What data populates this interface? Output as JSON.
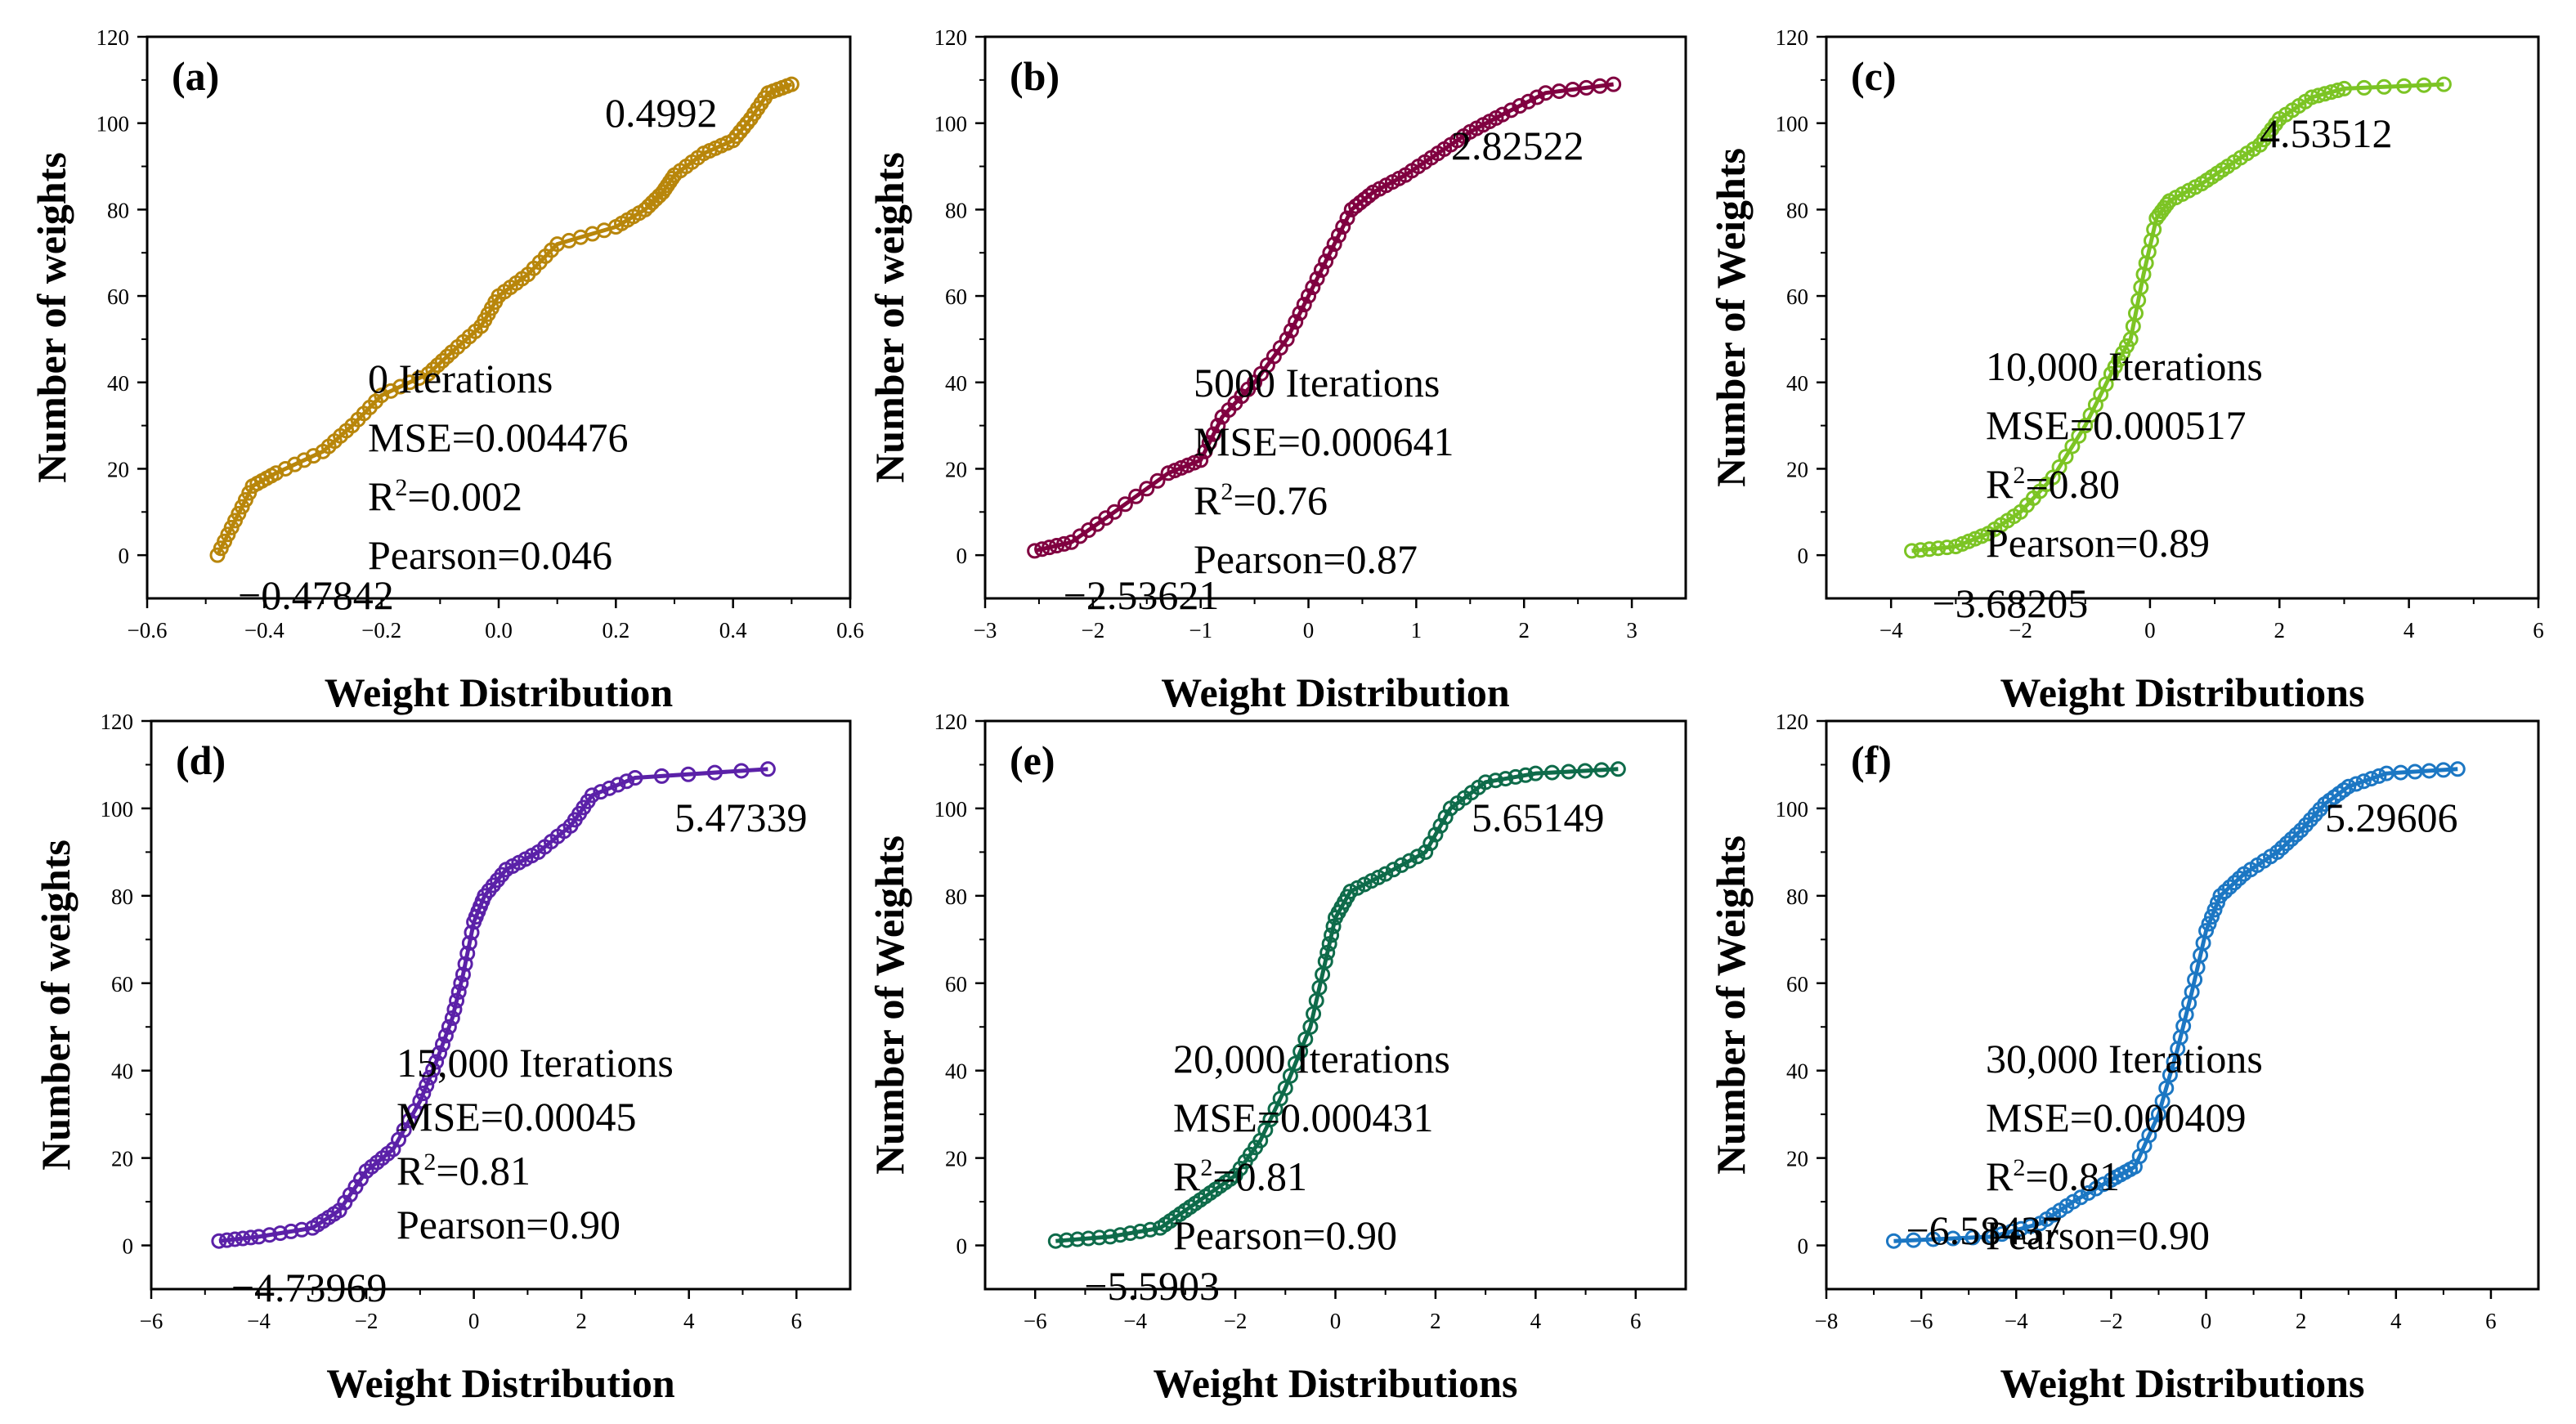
{
  "chart_data": [
    {
      "type": "line",
      "panel_label": "(a)",
      "xlabel": "Weight Distribution",
      "ylabel": "Number of weights",
      "xlim": [
        -0.6,
        0.6
      ],
      "ylim": [
        -10,
        120
      ],
      "xticks": [
        -0.6,
        -0.4,
        -0.2,
        0.0,
        0.2,
        0.4,
        0.6
      ],
      "xtick_labels": [
        "−0.6",
        "−0.4",
        "−0.2",
        "0.0",
        "0.2",
        "0.4",
        "0.6"
      ],
      "yticks": [
        0,
        20,
        40,
        60,
        80,
        100,
        120
      ],
      "ytick_labels": [
        "0",
        "20",
        "40",
        "60",
        "80",
        "100",
        "120"
      ],
      "color": "#B8860B",
      "markers": "open-circle",
      "series": [
        {
          "name": "weights",
          "x": [
            -0.48,
            -0.45,
            -0.42,
            -0.38,
            -0.3,
            -0.25,
            -0.2,
            -0.12,
            -0.08,
            -0.03,
            0.0,
            0.05,
            0.1,
            0.2,
            0.25,
            0.28,
            0.3,
            0.35,
            0.4,
            0.43,
            0.46,
            0.5
          ],
          "y": [
            0,
            8,
            16,
            19,
            24,
            30,
            37,
            42,
            47,
            53,
            60,
            65,
            72,
            76,
            80,
            84,
            88,
            93,
            96,
            101,
            107,
            109
          ]
        }
      ],
      "min_label": "−0.47842",
      "max_label": "0.4992",
      "stats": {
        "iterations": "0 Iterations",
        "mse": "MSE=0.004476",
        "r2_value": "=0.002",
        "pearson": "Pearson=0.046"
      }
    },
    {
      "type": "line",
      "panel_label": "(b)",
      "xlabel": "Weight Distribution",
      "ylabel": "Number of weights",
      "xlim": [
        -3,
        3.5
      ],
      "ylim": [
        -10,
        120
      ],
      "xticks": [
        -3,
        -2,
        -1,
        0,
        1,
        2,
        3
      ],
      "xtick_labels": [
        "−3",
        "−2",
        "−1",
        "0",
        "1",
        "2",
        "3"
      ],
      "yticks": [
        0,
        20,
        40,
        60,
        80,
        100,
        120
      ],
      "ytick_labels": [
        "0",
        "20",
        "40",
        "60",
        "80",
        "100",
        "120"
      ],
      "color": "#800040",
      "markers": "open-circle",
      "series": [
        {
          "name": "weights",
          "x": [
            -2.54,
            -2.2,
            -1.8,
            -1.3,
            -1.0,
            -0.8,
            -0.5,
            -0.2,
            0.0,
            0.2,
            0.4,
            0.6,
            0.9,
            1.2,
            1.5,
            1.8,
            2.2,
            2.83
          ],
          "y": [
            1,
            3,
            10,
            19,
            22,
            32,
            40,
            50,
            60,
            70,
            80,
            84,
            88,
            93,
            98,
            102,
            107,
            109
          ]
        }
      ],
      "min_label": "−2.53621",
      "max_label": "2.82522",
      "stats": {
        "iterations": "5000 Iterations",
        "mse": "MSE=0.000641",
        "r2_value": "=0.76",
        "pearson": "Pearson=0.87"
      }
    },
    {
      "type": "line",
      "panel_label": "(c)",
      "xlabel": "Weight Distributions",
      "ylabel": "Number of Weights",
      "xlim": [
        -5,
        6
      ],
      "ylim": [
        -10,
        120
      ],
      "xticks": [
        -4,
        -2,
        0,
        2,
        4,
        6
      ],
      "xtick_labels": [
        "−4",
        "−2",
        "0",
        "2",
        "4",
        "6"
      ],
      "yticks": [
        0,
        20,
        40,
        60,
        80,
        100,
        120
      ],
      "ytick_labels": [
        "0",
        "20",
        "40",
        "60",
        "80",
        "100",
        "120"
      ],
      "color": "#7CC424",
      "markers": "open-circle",
      "series": [
        {
          "name": "weights",
          "x": [
            -3.68,
            -3.0,
            -2.5,
            -2.0,
            -1.5,
            -1.0,
            -0.6,
            -0.3,
            -0.1,
            0.1,
            0.3,
            0.8,
            1.2,
            1.7,
            2.0,
            2.5,
            3.0,
            4.54
          ],
          "y": [
            1,
            2,
            5,
            10,
            18,
            30,
            42,
            50,
            65,
            78,
            82,
            86,
            90,
            95,
            101,
            106,
            108,
            109
          ]
        }
      ],
      "min_label": "−3.68205",
      "max_label": "4.53512",
      "stats": {
        "iterations": "10,000 Iterations",
        "mse": "MSE=0.000517",
        "r2_value": "=0.80",
        "pearson": "Pearson=0.89"
      }
    },
    {
      "type": "line",
      "panel_label": "(d)",
      "xlabel": "Weight Distribution",
      "ylabel": "Number of weights",
      "xlim": [
        -6,
        7
      ],
      "ylim": [
        -10,
        120
      ],
      "xticks": [
        -6,
        -4,
        -2,
        0,
        2,
        4,
        6
      ],
      "xtick_labels": [
        "−6",
        "−4",
        "−2",
        "0",
        "2",
        "4",
        "6"
      ],
      "yticks": [
        0,
        20,
        40,
        60,
        80,
        100,
        120
      ],
      "ytick_labels": [
        "0",
        "20",
        "40",
        "60",
        "80",
        "100",
        "120"
      ],
      "color": "#5B21A8",
      "markers": "open-circle",
      "series": [
        {
          "name": "weights",
          "x": [
            -4.74,
            -4.0,
            -3.0,
            -2.5,
            -2.0,
            -1.5,
            -1.0,
            -0.7,
            -0.4,
            -0.2,
            0.0,
            0.2,
            0.6,
            1.2,
            1.8,
            2.2,
            3.0,
            5.47
          ],
          "y": [
            1,
            2,
            4,
            8,
            17,
            22,
            33,
            42,
            52,
            62,
            74,
            80,
            86,
            90,
            96,
            103,
            107,
            109
          ]
        }
      ],
      "min_label": "−4.73969",
      "max_label": "5.47339",
      "stats": {
        "iterations": "15,000 Iterations",
        "mse": "MSE=0.00045",
        "r2_value": "=0.81",
        "pearson": "Pearson=0.90"
      }
    },
    {
      "type": "line",
      "panel_label": "(e)",
      "xlabel": "Weight Distributions",
      "ylabel": "Number of Weights",
      "xlim": [
        -7,
        7
      ],
      "ylim": [
        -10,
        120
      ],
      "xticks": [
        -6,
        -4,
        -2,
        0,
        2,
        4,
        6
      ],
      "xtick_labels": [
        "−6",
        "−4",
        "−2",
        "0",
        "2",
        "4",
        "6"
      ],
      "yticks": [
        0,
        20,
        40,
        60,
        80,
        100,
        120
      ],
      "ytick_labels": [
        "0",
        "20",
        "40",
        "60",
        "80",
        "100",
        "120"
      ],
      "color": "#0E6B4A",
      "markers": "open-circle",
      "series": [
        {
          "name": "weights",
          "x": [
            -5.59,
            -4.5,
            -3.5,
            -3.0,
            -2.5,
            -2.0,
            -1.5,
            -1.0,
            -0.5,
            -0.2,
            0.0,
            0.3,
            1.0,
            1.8,
            2.3,
            3.0,
            4.0,
            5.65
          ],
          "y": [
            1,
            2,
            4,
            8,
            12,
            16,
            24,
            36,
            50,
            65,
            75,
            81,
            85,
            90,
            100,
            106,
            108,
            109
          ]
        }
      ],
      "min_label": "−5.5903",
      "max_label": "5.65149",
      "stats": {
        "iterations": "20,000 Iterations",
        "mse": "MSE=0.000431",
        "r2_value": "=0.81",
        "pearson": "Pearson=0.90"
      }
    },
    {
      "type": "line",
      "panel_label": "(f)",
      "xlabel": "Weight Distributions",
      "ylabel": "Number of Weights",
      "xlim": [
        -8,
        7
      ],
      "ylim": [
        -10,
        120
      ],
      "xticks": [
        -8,
        -6,
        -4,
        -2,
        0,
        2,
        4,
        6
      ],
      "xtick_labels": [
        "−8",
        "−6",
        "−4",
        "−2",
        "0",
        "2",
        "4",
        "6"
      ],
      "yticks": [
        0,
        20,
        40,
        60,
        80,
        100,
        120
      ],
      "ytick_labels": [
        "0",
        "20",
        "40",
        "60",
        "80",
        "100",
        "120"
      ],
      "color": "#1C77C3",
      "markers": "open-circle",
      "series": [
        {
          "name": "weights",
          "x": [
            -6.58,
            -4.5,
            -3.5,
            -2.8,
            -2.0,
            -1.5,
            -1.0,
            -0.6,
            -0.3,
            0.0,
            0.3,
            0.8,
            1.5,
            2.0,
            2.5,
            3.0,
            3.8,
            5.3
          ],
          "y": [
            1,
            2,
            5,
            10,
            15,
            18,
            30,
            45,
            58,
            72,
            80,
            85,
            90,
            95,
            101,
            105,
            108,
            109
          ]
        }
      ],
      "min_label": "−6.58437",
      "max_label": "5.29606",
      "stats": {
        "iterations": "30,000 Iterations",
        "mse": "MSE=0.000409",
        "r2_value": "=0.81",
        "pearson": "Pearson=0.90"
      }
    }
  ]
}
